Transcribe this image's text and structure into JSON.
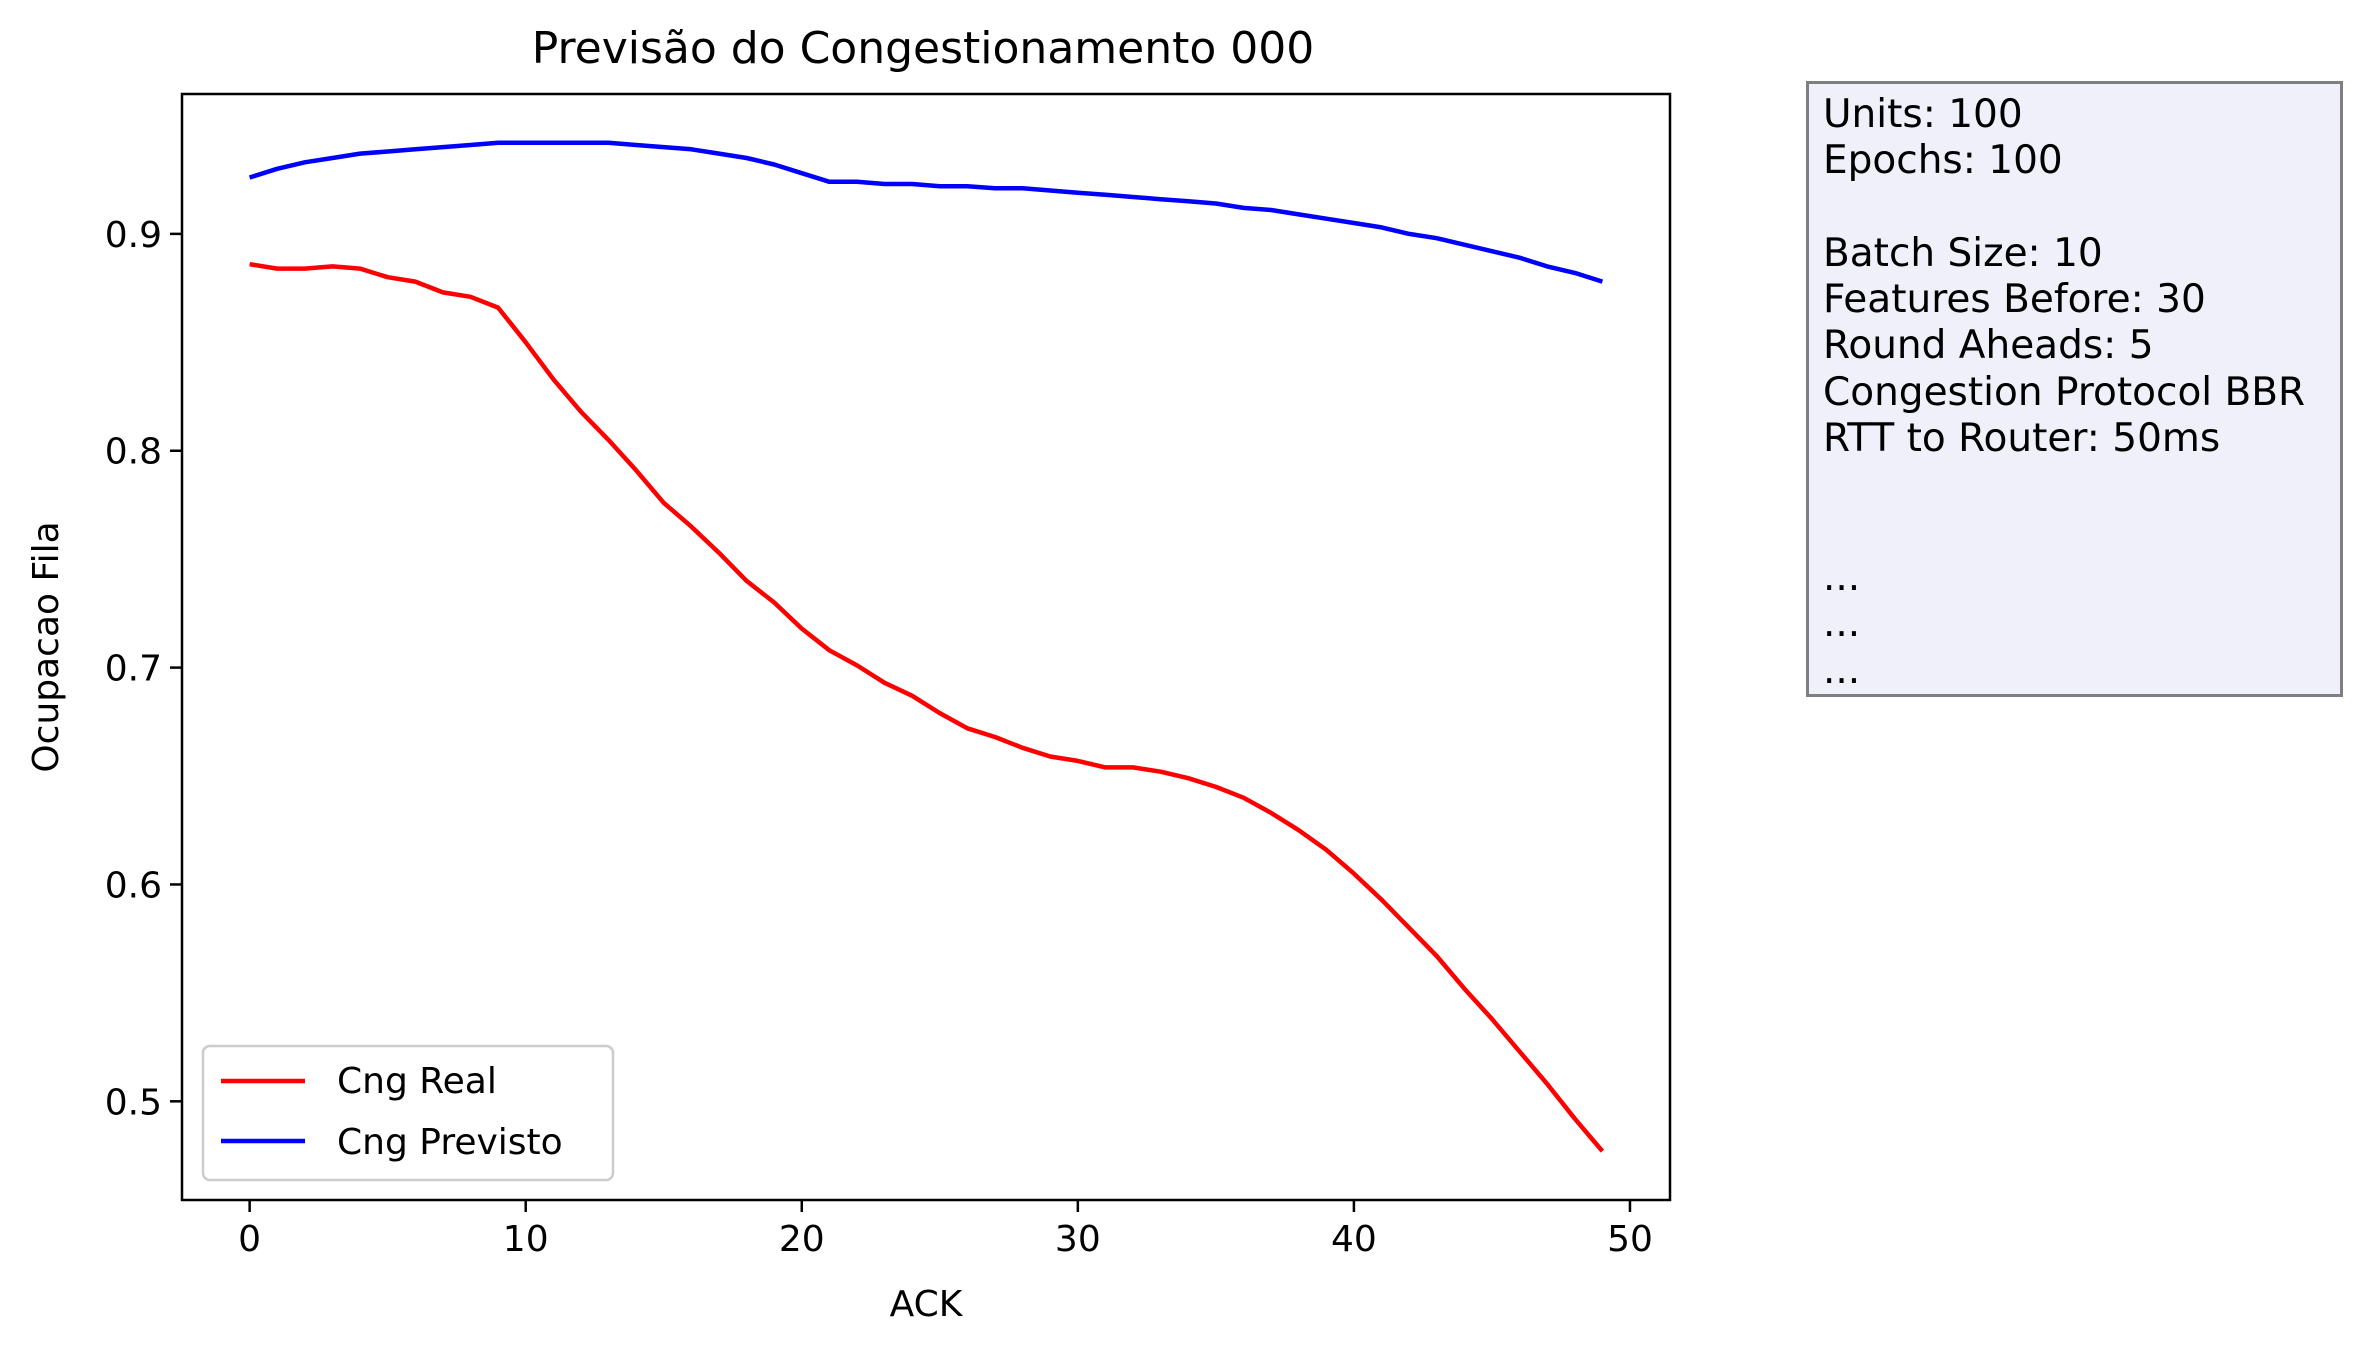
{
  "chart_data": {
    "type": "line",
    "title": "Previsão do Congestionamento 000",
    "xlabel": "ACK",
    "ylabel": "Ocupacao Fila",
    "xlim": [
      -2.45,
      51.45
    ],
    "ylim": [
      0.4545,
      0.9645
    ],
    "xticks": [
      0,
      10,
      20,
      30,
      40,
      50
    ],
    "yticks": [
      0.5,
      0.6,
      0.7,
      0.8,
      0.9
    ],
    "grid": false,
    "legend_position": "lower-left",
    "x": [
      0,
      1,
      2,
      3,
      4,
      5,
      6,
      7,
      8,
      9,
      10,
      11,
      12,
      13,
      14,
      15,
      16,
      17,
      18,
      19,
      20,
      21,
      22,
      23,
      24,
      25,
      26,
      27,
      28,
      29,
      30,
      31,
      32,
      33,
      34,
      35,
      36,
      37,
      38,
      39,
      40,
      41,
      42,
      43,
      44,
      45,
      46,
      47,
      48,
      49
    ],
    "series": [
      {
        "name": "Cng Real",
        "color": "#ff0000",
        "values": [
          0.886,
          0.884,
          0.884,
          0.885,
          0.884,
          0.88,
          0.878,
          0.873,
          0.871,
          0.866,
          0.85,
          0.833,
          0.818,
          0.805,
          0.791,
          0.776,
          0.765,
          0.753,
          0.74,
          0.73,
          0.718,
          0.708,
          0.701,
          0.693,
          0.687,
          0.679,
          0.672,
          0.668,
          0.663,
          0.659,
          0.657,
          0.654,
          0.654,
          0.652,
          0.649,
          0.645,
          0.64,
          0.633,
          0.625,
          0.616,
          0.605,
          0.593,
          0.58,
          0.567,
          0.552,
          0.538,
          0.523,
          0.508,
          0.492,
          0.477
        ]
      },
      {
        "name": "Cng Previsto",
        "color": "#0000ff",
        "values": [
          0.926,
          0.93,
          0.933,
          0.935,
          0.937,
          0.938,
          0.939,
          0.94,
          0.941,
          0.942,
          0.942,
          0.942,
          0.942,
          0.942,
          0.941,
          0.94,
          0.939,
          0.937,
          0.935,
          0.932,
          0.928,
          0.924,
          0.924,
          0.923,
          0.923,
          0.922,
          0.922,
          0.921,
          0.921,
          0.92,
          0.919,
          0.918,
          0.917,
          0.916,
          0.915,
          0.914,
          0.912,
          0.911,
          0.909,
          0.907,
          0.905,
          0.903,
          0.9,
          0.898,
          0.895,
          0.892,
          0.889,
          0.885,
          0.882,
          0.878
        ]
      }
    ]
  },
  "info_box": {
    "lines": [
      "Units: 100",
      "Epochs: 100",
      "",
      "Batch Size: 10",
      "Features Before: 30",
      "Round Aheads: 5",
      "Congestion Protocol BBR",
      "RTT to Router: 50ms",
      "",
      "",
      "...",
      "...",
      "..."
    ]
  }
}
